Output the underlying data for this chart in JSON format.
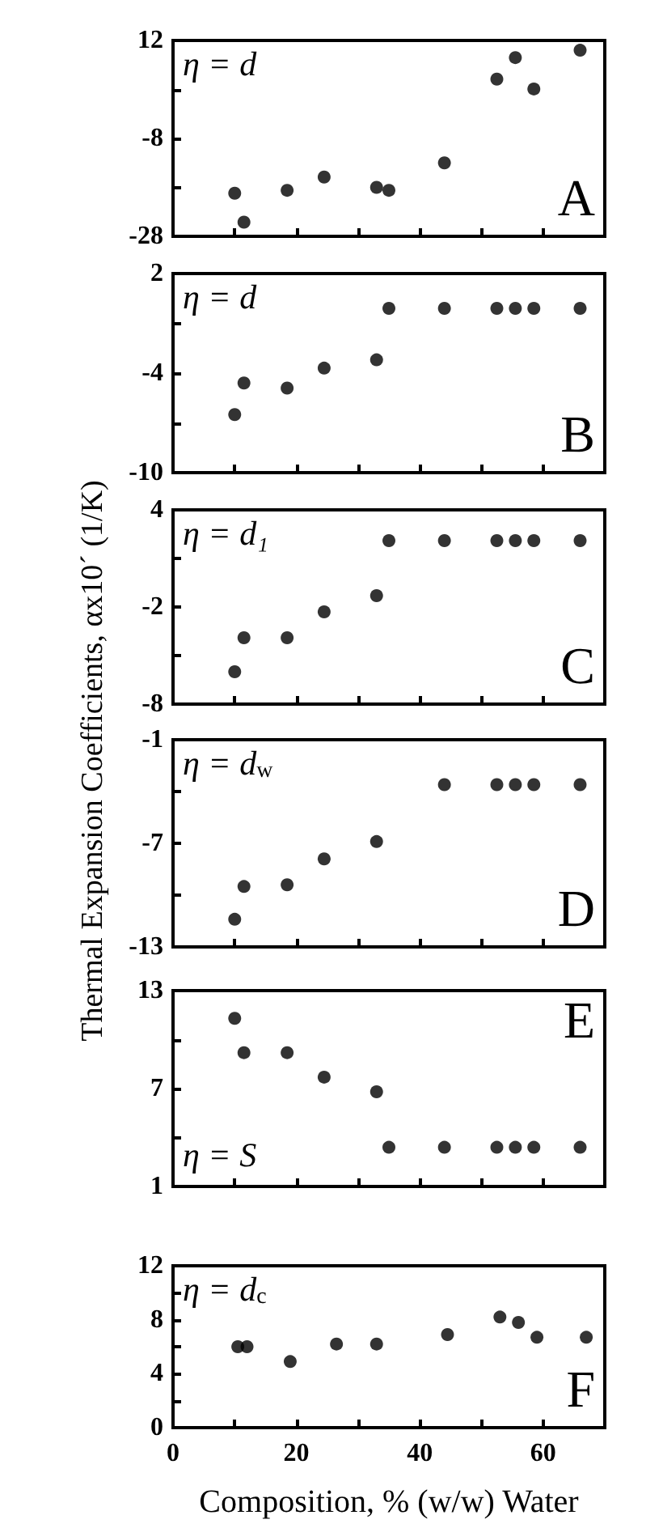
{
  "chart_data": [
    {
      "type": "scatter",
      "annotations": [
        "η = d",
        "A"
      ],
      "marker": "circle",
      "tick_labels": "y",
      "xlim": [
        0,
        70
      ],
      "xticks": [
        0,
        {
          "value": 10,
          "label": null
        },
        20,
        {
          "value": 30,
          "label": null
        },
        40,
        {
          "value": 50,
          "label": null
        },
        60
      ],
      "ylim": [
        -28,
        12
      ],
      "yticks": [
        -28,
        {
          "value": -18,
          "label": null
        },
        -8,
        {
          "value": 2,
          "label": null
        },
        12
      ],
      "x": [
        10,
        11.5,
        18.5,
        24.5,
        33,
        35,
        44,
        52.5,
        55.5,
        58.5,
        66
      ],
      "series": [
        {
          "color": "#000000",
          "values": [
            -19.2,
            -25.1,
            -18.6,
            -15.9,
            -18.0,
            -18.6,
            -13.0,
            4.1,
            8.5,
            2.1,
            10
          ]
        }
      ]
    },
    {
      "type": "scatter",
      "annotations": [
        "η = d",
        "B"
      ],
      "marker": "circle",
      "tick_labels": "y",
      "xlim": [
        0,
        70
      ],
      "xticks": [
        0,
        {
          "value": 10,
          "label": null
        },
        20,
        {
          "value": 30,
          "label": null
        },
        40,
        {
          "value": 50,
          "label": null
        },
        60
      ],
      "ylim": [
        -10,
        2
      ],
      "yticks": [
        -10,
        {
          "value": -7,
          "label": null
        },
        -4,
        {
          "value": -1,
          "label": null
        },
        2
      ],
      "x": [
        10,
        11.5,
        18.5,
        24.5,
        33,
        35,
        44,
        52.5,
        55.5,
        58.5,
        66
      ],
      "series": [
        {
          "color": "#000000",
          "values": [
            -6.5,
            -4.6,
            -4.9,
            -3.7,
            -3.2,
            -0.1,
            -0.1,
            -0.1,
            -0.1,
            -0.1,
            -0.1
          ]
        }
      ]
    },
    {
      "type": "scatter",
      "annotations": [
        "η = d₁",
        "C"
      ],
      "marker": "circle",
      "tick_labels": "y",
      "xlim": [
        0,
        70
      ],
      "xticks": [
        0,
        {
          "value": 10,
          "label": null
        },
        20,
        {
          "value": 30,
          "label": null
        },
        40,
        {
          "value": 50,
          "label": null
        },
        60
      ],
      "ylim": [
        -8,
        4
      ],
      "yticks": [
        -8,
        {
          "value": -5,
          "label": null
        },
        -2,
        {
          "value": 1,
          "label": null
        },
        4
      ],
      "x": [
        10,
        11.5,
        18.5,
        24.5,
        33,
        35,
        44,
        52.5,
        55.5,
        58.5,
        66
      ],
      "series": [
        {
          "color": "#000000",
          "values": [
            -6.0,
            -3.9,
            -3.9,
            -2.3,
            -1.3,
            2.1,
            2.1,
            2.1,
            2.1,
            2.1,
            2.1
          ]
        }
      ]
    },
    {
      "type": "scatter",
      "ylabel": "Thermal Expansion Coefficients, αx10´ (1/K)",
      "annotations": [
        "η = d$_{w}$",
        "D"
      ],
      "marker": "circle",
      "tick_labels": "y",
      "xlim": [
        0,
        70
      ],
      "xticks": [
        0,
        {
          "value": 10,
          "label": null
        },
        20,
        {
          "value": 30,
          "label": null
        },
        40,
        {
          "value": 50,
          "label": null
        },
        60
      ],
      "ylim": [
        -13,
        -1
      ],
      "yticks": [
        -13,
        {
          "value": -10,
          "label": null
        },
        -7,
        {
          "value": -4,
          "label": null
        },
        -1
      ],
      "x": [
        10,
        11.5,
        18.5,
        24.5,
        33,
        44,
        52.5,
        55.5,
        58.5,
        66
      ],
      "series": [
        {
          "color": "#000000",
          "values": [
            -11.4,
            -9.5,
            -9.4,
            -7.9,
            -6.9,
            -3.6,
            -3.6,
            -3.6,
            -3.6,
            -3.6
          ]
        }
      ]
    },
    {
      "type": "scatter",
      "annotations": [
        "η = S",
        "E"
      ],
      "marker": "circle",
      "tick_labels": "y",
      "xlim": [
        0,
        70
      ],
      "xticks": [
        0,
        {
          "value": 10,
          "label": null
        },
        20,
        {
          "value": 30,
          "label": null
        },
        40,
        {
          "value": 50,
          "label": null
        },
        60
      ],
      "ylim": [
        1,
        13
      ],
      "yticks": [
        1,
        {
          "value": 4,
          "label": null
        },
        7,
        {
          "value": 10,
          "label": null
        },
        13
      ],
      "x": [
        10,
        11.5,
        18.5,
        24.5,
        33,
        35,
        44,
        52.5,
        55.5,
        58.5,
        66
      ],
      "series": [
        {
          "color": "#000000",
          "values": [
            11.3,
            9.2,
            9.2,
            7.7,
            6.8,
            3.4,
            3.4,
            3.4,
            3.4,
            3.4,
            3.4
          ]
        }
      ]
    },
    {
      "type": "scatter",
      "xlabel": "Composition, % (w/w) Water",
      "annotations": [
        "η = d$_{c}$",
        "F"
      ],
      "marker": "circle",
      "xlim": [
        0,
        70
      ],
      "xticks": [
        0,
        {
          "value": 10,
          "label": null
        },
        20,
        {
          "value": 30,
          "label": null
        },
        40,
        {
          "value": 50,
          "label": null
        },
        60
      ],
      "ylim": [
        0,
        12
      ],
      "yticks": [
        0,
        {
          "value": 2,
          "label": null
        },
        4,
        {
          "value": 6,
          "label": null
        },
        8,
        {
          "value": 10,
          "label": null
        },
        12
      ],
      "x": [
        10.5,
        12,
        19,
        26.5,
        33,
        44.5,
        53,
        56,
        59,
        67
      ],
      "series": [
        {
          "color": "#000000",
          "values": [
            6.0,
            6.0,
            4.9,
            6.2,
            6.2,
            6.9,
            8.2,
            7.8,
            6.7,
            6.7
          ]
        }
      ]
    }
  ]
}
